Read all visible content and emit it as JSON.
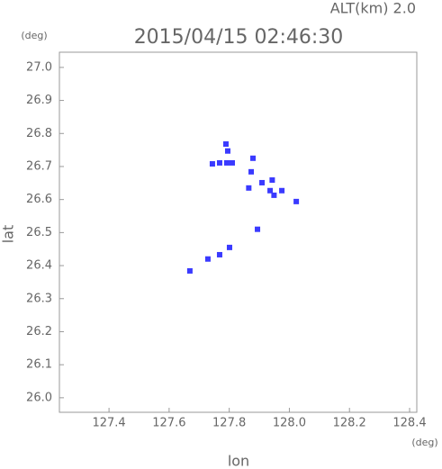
{
  "chart_data": {
    "type": "scatter",
    "alt_label": "ALT(km) 2.0",
    "title": "2015/04/15 02:46:30",
    "xlabel": "lon",
    "ylabel": "lat",
    "xunit": "(deg)",
    "yunit": "(deg)",
    "xlim": [
      127.235,
      128.424
    ],
    "ylim": [
      25.956,
      27.046
    ],
    "xticks": [
      127.4,
      127.6,
      127.8,
      {
        "value": 128.0,
        "label": "128.0"
      },
      128.2,
      128.4
    ],
    "yticks": [
      {
        "value": 26.0,
        "label": "26.0"
      },
      26.1,
      26.2,
      26.3,
      26.4,
      26.5,
      26.6,
      26.7,
      26.8,
      26.9,
      {
        "value": 27.0,
        "label": "27.0"
      }
    ],
    "color": "#3a3aff",
    "x": [
      127.744,
      127.768,
      127.792,
      127.81,
      127.789,
      127.795,
      127.873,
      127.879,
      127.865,
      127.909,
      127.936,
      127.943,
      127.949,
      127.975,
      128.023,
      127.894,
      127.768,
      127.729,
      127.669,
      127.801
    ],
    "values": [
      26.708,
      26.711,
      26.711,
      26.711,
      26.768,
      26.747,
      26.684,
      26.725,
      26.635,
      26.651,
      26.627,
      26.659,
      26.613,
      26.627,
      26.594,
      26.51,
      26.433,
      26.42,
      26.384,
      26.455
    ]
  }
}
